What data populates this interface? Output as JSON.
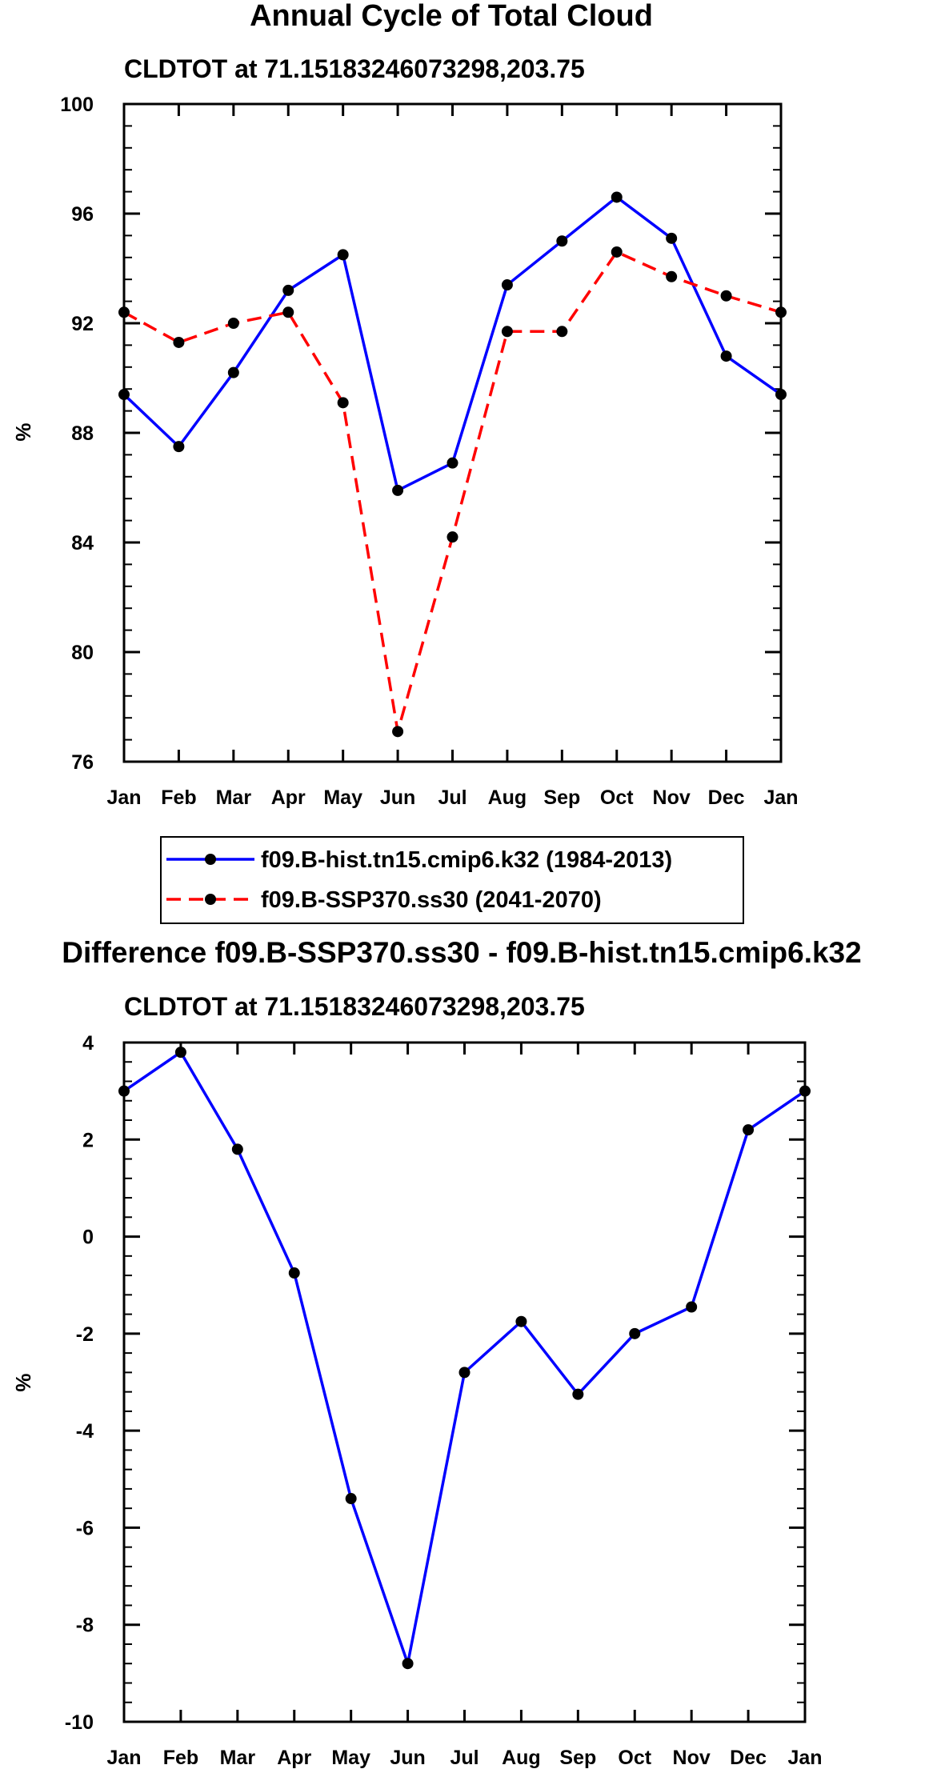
{
  "chart_data": [
    {
      "type": "line",
      "title": "Annual Cycle of Total Cloud",
      "subtitle": "CLDTOT at 71.15183246073298,203.75",
      "xlabel": "",
      "ylabel": "%",
      "categories": [
        "Jan",
        "Feb",
        "Mar",
        "Apr",
        "May",
        "Jun",
        "Jul",
        "Aug",
        "Sep",
        "Oct",
        "Nov",
        "Dec",
        "Jan"
      ],
      "ylim": [
        76,
        100
      ],
      "yticks": [
        "76",
        "80",
        "84",
        "88",
        "92",
        "96",
        "100"
      ],
      "series": [
        {
          "name": "f09.B-hist.tn15.cmip6.k32 (1984-2013)",
          "color": "#0000ff",
          "dash": "solid",
          "values": [
            89.4,
            87.5,
            90.2,
            93.2,
            94.5,
            85.9,
            86.9,
            93.4,
            95.0,
            96.6,
            95.1,
            90.8,
            89.4
          ]
        },
        {
          "name": "f09.B-SSP370.ss30 (2041-2070)",
          "color": "#ff0000",
          "dash": "dashed",
          "values": [
            92.4,
            91.3,
            92.0,
            92.4,
            89.1,
            77.1,
            84.2,
            91.7,
            91.7,
            94.6,
            93.7,
            93.0,
            92.4
          ]
        }
      ],
      "legend": {
        "placement": "bottom",
        "entries": [
          "f09.B-hist.tn15.cmip6.k32 (1984-2013)",
          "f09.B-SSP370.ss30 (2041-2070)"
        ]
      }
    },
    {
      "type": "line",
      "title": "Difference f09.B-SSP370.ss30 - f09.B-hist.tn15.cmip6.k32",
      "subtitle": "CLDTOT at 71.15183246073298,203.75",
      "xlabel": "",
      "ylabel": "%",
      "categories": [
        "Jan",
        "Feb",
        "Mar",
        "Apr",
        "May",
        "Jun",
        "Jul",
        "Aug",
        "Sep",
        "Oct",
        "Nov",
        "Dec",
        "Jan"
      ],
      "ylim": [
        -10,
        4
      ],
      "yticks": [
        "-10",
        "-8",
        "-6",
        "-4",
        "-2",
        "0",
        "2",
        "4"
      ],
      "series": [
        {
          "name": "Difference",
          "color": "#0000ff",
          "dash": "solid",
          "values": [
            3.0,
            3.8,
            1.8,
            -0.75,
            -5.4,
            -8.8,
            -2.8,
            -1.75,
            -3.25,
            -2.0,
            -1.45,
            2.2,
            3.0
          ]
        }
      ]
    }
  ]
}
